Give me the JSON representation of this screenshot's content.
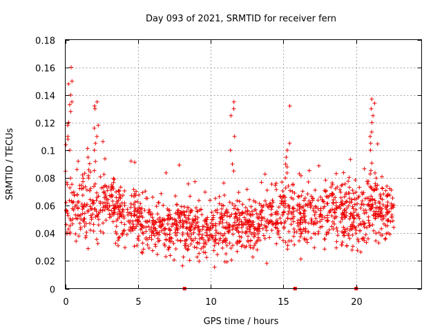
{
  "chart_data": {
    "type": "scatter",
    "title": "Day 093 of 2021, SRMTID for receiver fern",
    "xlabel": "GPS time / hours",
    "ylabel": "SRMTID / TECUs",
    "xlim": [
      0,
      24.5
    ],
    "ylim": [
      0,
      0.18
    ],
    "x_ticks": [
      0,
      5,
      10,
      15,
      20
    ],
    "x_tick_labels": [
      "0",
      "5",
      "10",
      "15",
      "20"
    ],
    "y_ticks": [
      0,
      0.02,
      0.04,
      0.06,
      0.08,
      0.1,
      0.12,
      0.14,
      0.16,
      0.18
    ],
    "y_tick_labels": [
      "0",
      "0.02",
      "0.04",
      "0.06",
      "0.08",
      "0.1",
      "0.12",
      "0.14",
      "0.16",
      "0.18"
    ],
    "grid": true,
    "marker": "plus",
    "color": "#ee0000",
    "data_span_hours": [
      0,
      22.6
    ],
    "gap_markers_x": [
      8.2,
      15.8,
      20.0
    ],
    "envelope_hourly": [
      {
        "hour": 0,
        "center": 0.06,
        "spread": 0.022
      },
      {
        "hour": 1,
        "center": 0.055,
        "spread": 0.022
      },
      {
        "hour": 2,
        "center": 0.062,
        "spread": 0.024
      },
      {
        "hour": 3,
        "center": 0.06,
        "spread": 0.02
      },
      {
        "hour": 4,
        "center": 0.055,
        "spread": 0.02
      },
      {
        "hour": 5,
        "center": 0.052,
        "spread": 0.02
      },
      {
        "hour": 6,
        "center": 0.047,
        "spread": 0.018
      },
      {
        "hour": 7,
        "center": 0.042,
        "spread": 0.017
      },
      {
        "hour": 8,
        "center": 0.045,
        "spread": 0.018
      },
      {
        "hour": 9,
        "center": 0.045,
        "spread": 0.018
      },
      {
        "hour": 10,
        "center": 0.04,
        "spread": 0.018
      },
      {
        "hour": 11,
        "center": 0.045,
        "spread": 0.02
      },
      {
        "hour": 12,
        "center": 0.045,
        "spread": 0.018
      },
      {
        "hour": 13,
        "center": 0.047,
        "spread": 0.018
      },
      {
        "hour": 14,
        "center": 0.052,
        "spread": 0.02
      },
      {
        "hour": 15,
        "center": 0.058,
        "spread": 0.022
      },
      {
        "hour": 16,
        "center": 0.05,
        "spread": 0.02
      },
      {
        "hour": 17,
        "center": 0.052,
        "spread": 0.02
      },
      {
        "hour": 18,
        "center": 0.058,
        "spread": 0.02
      },
      {
        "hour": 19,
        "center": 0.055,
        "spread": 0.02
      },
      {
        "hour": 20,
        "center": 0.05,
        "spread": 0.02
      },
      {
        "hour": 21,
        "center": 0.06,
        "spread": 0.022
      },
      {
        "hour": 22,
        "center": 0.055,
        "spread": 0.02
      }
    ],
    "bursts": [
      {
        "x": 0.3,
        "values": [
          0.16,
          0.15,
          0.148,
          0.14,
          0.135,
          0.133,
          0.128,
          0.12,
          0.118,
          0.11,
          0.108,
          0.1
        ]
      },
      {
        "x": 2.1,
        "values": [
          0.135,
          0.132,
          0.13,
          0.118,
          0.116,
          0.11,
          0.105,
          0.1
        ]
      },
      {
        "x": 11.5,
        "values": [
          0.135,
          0.13,
          0.125,
          0.11,
          0.1,
          0.09,
          0.085
        ]
      },
      {
        "x": 15.3,
        "values": [
          0.132,
          0.105,
          0.1,
          0.095,
          0.09,
          0.088
        ]
      },
      {
        "x": 21.1,
        "values": [
          0.137,
          0.134,
          0.13,
          0.125,
          0.12,
          0.11,
          0.105,
          0.1
        ]
      }
    ],
    "point_count": 1500
  }
}
